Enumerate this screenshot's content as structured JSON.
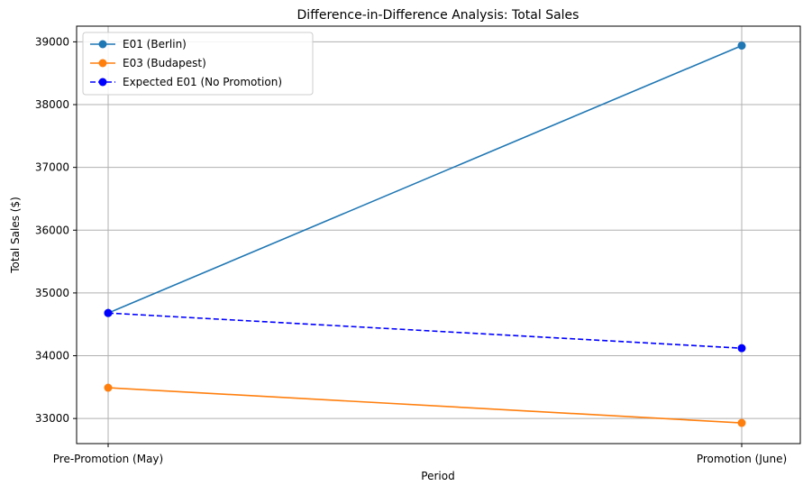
{
  "chart_data": {
    "type": "line",
    "title": "Difference-in-Difference Analysis: Total Sales",
    "xlabel": "Period",
    "ylabel": "Total Sales ($)",
    "categories": [
      "Pre-Promotion (May)",
      "Promotion (June)"
    ],
    "ylim": [
      32600,
      39250
    ],
    "yticks": [
      33000,
      34000,
      35000,
      36000,
      37000,
      38000,
      39000
    ],
    "grid": true,
    "legend_position": "top-left",
    "series": [
      {
        "name": "E01 (Berlin)",
        "values": [
          34680,
          38940
        ],
        "color": "#1f77b4",
        "linestyle": "solid",
        "marker": "circle"
      },
      {
        "name": "E03 (Budapest)",
        "values": [
          33490,
          32930
        ],
        "color": "#ff7f0e",
        "linestyle": "solid",
        "marker": "circle"
      },
      {
        "name": "Expected E01 (No Promotion)",
        "values": [
          34680,
          34120
        ],
        "color": "#0000ff",
        "linestyle": "dashed",
        "marker": "circle"
      }
    ]
  }
}
